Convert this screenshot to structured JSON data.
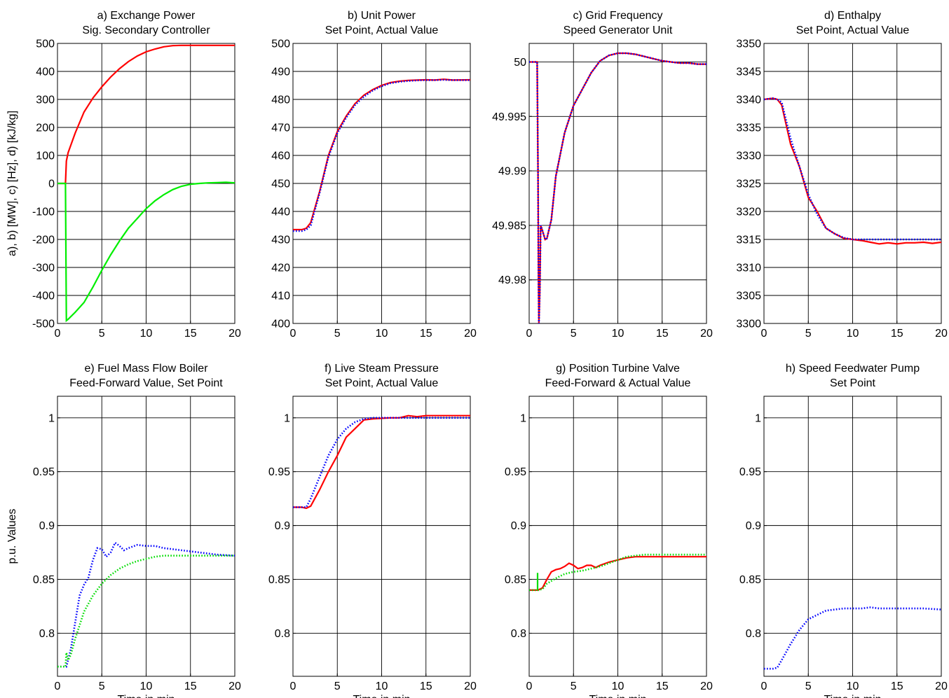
{
  "figure": {
    "ylabel_top": "a), b) [MW], c) [Hz], d) [kJ/kg]",
    "ylabel_bottom": "p.u. Values",
    "xlabel": "Time in min"
  },
  "chart_data": [
    {
      "type": "line",
      "title": [
        "a) Exchange Power",
        "Sig. Secondary Controller"
      ],
      "xlim": [
        0,
        20
      ],
      "xticks": [
        0,
        5,
        10,
        15,
        20
      ],
      "ylim": [
        -500,
        500
      ],
      "yticks": [
        -500,
        -400,
        -300,
        -200,
        -100,
        0,
        100,
        200,
        300,
        400,
        500
      ],
      "grid": true,
      "series": [
        {
          "color": "#ff0000",
          "style": "solid",
          "x": [
            0,
            0.9,
            1.0,
            1.2,
            2,
            3,
            4,
            5,
            6,
            7,
            8,
            9,
            10,
            11,
            12,
            13,
            14,
            15,
            17,
            20
          ],
          "y": [
            0,
            0,
            80,
            110,
            180,
            255,
            305,
            345,
            380,
            410,
            435,
            455,
            470,
            480,
            488,
            492,
            493,
            493,
            493,
            493
          ]
        },
        {
          "color": "#00ee00",
          "style": "solid",
          "x": [
            0,
            0.9,
            1.0,
            1.2,
            2,
            3,
            4,
            5,
            6,
            7,
            8,
            9,
            10,
            11,
            12,
            13,
            14,
            15,
            16,
            17,
            18,
            19,
            20
          ],
          "y": [
            0,
            0,
            -490,
            -485,
            -460,
            -425,
            -370,
            -310,
            -255,
            -205,
            -160,
            -125,
            -90,
            -62,
            -40,
            -22,
            -10,
            -3,
            0,
            2,
            3,
            4,
            2
          ]
        }
      ]
    },
    {
      "type": "line",
      "title": [
        "b) Unit Power",
        "Set Point, Actual Value"
      ],
      "xlim": [
        0,
        20
      ],
      "xticks": [
        0,
        5,
        10,
        15,
        20
      ],
      "ylim": [
        400,
        500
      ],
      "yticks": [
        400,
        410,
        420,
        430,
        440,
        450,
        460,
        470,
        480,
        490,
        500
      ],
      "grid": true,
      "series": [
        {
          "color": "#ff0000",
          "style": "solid",
          "x": [
            0,
            1,
            1.5,
            2,
            3,
            4,
            5,
            6,
            7,
            8,
            9,
            10,
            11,
            12,
            13,
            14,
            15,
            16,
            17,
            18,
            20
          ],
          "y": [
            433.5,
            433.5,
            434,
            436,
            447,
            460,
            468.5,
            474,
            478.5,
            481.5,
            483.5,
            485,
            486,
            486.5,
            486.8,
            486.9,
            487,
            486.9,
            487.2,
            486.9,
            487
          ]
        },
        {
          "color": "#0000ff",
          "style": "dotted",
          "x": [
            0,
            1,
            1.5,
            2,
            3,
            4,
            5,
            6,
            7,
            8,
            9,
            10,
            11,
            12,
            13,
            14,
            15,
            16,
            17,
            18,
            20
          ],
          "y": [
            433,
            433,
            433.5,
            435,
            446.5,
            459.5,
            468,
            473.5,
            478,
            481,
            483.2,
            484.7,
            485.8,
            486.3,
            486.6,
            486.8,
            486.9,
            486.9,
            487,
            486.9,
            486.9
          ]
        }
      ]
    },
    {
      "type": "line",
      "title": [
        "c) Grid Frequency",
        "Speed Generator Unit"
      ],
      "xlim": [
        0,
        20
      ],
      "xticks": [
        0,
        5,
        10,
        15,
        20
      ],
      "ylim": [
        49.976,
        50.0017
      ],
      "yticks": [
        49.98,
        49.985,
        49.99,
        49.995,
        50
      ],
      "grid": true,
      "series": [
        {
          "color": "#ff0000",
          "style": "solid",
          "x": [
            0,
            0.9,
            0.95,
            1.0,
            1.05,
            1.1,
            1.2,
            1.3,
            1.5,
            1.8,
            2,
            2.5,
            3,
            4,
            5,
            6,
            7,
            8,
            9,
            10,
            11,
            12,
            13,
            14,
            15,
            16,
            17,
            18,
            19,
            20
          ],
          "y": [
            50,
            50,
            49.995,
            49.99,
            49.98,
            49.976,
            49.979,
            49.985,
            49.9845,
            49.9837,
            49.9838,
            49.9855,
            49.9895,
            49.9935,
            49.996,
            49.9975,
            49.999,
            50.0001,
            50.0006,
            50.0008,
            50.0008,
            50.0007,
            50.0005,
            50.0003,
            50.0001,
            50,
            49.9999,
            49.9999,
            49.9998,
            49.9998
          ]
        },
        {
          "color": "#0000ff",
          "style": "dotted",
          "x": [
            0,
            0.9,
            0.95,
            1.0,
            1.05,
            1.1,
            1.2,
            1.3,
            1.5,
            1.8,
            2,
            2.5,
            3,
            4,
            5,
            6,
            7,
            8,
            9,
            10,
            11,
            12,
            13,
            14,
            15,
            16,
            17,
            18,
            19,
            20
          ],
          "y": [
            50,
            50,
            49.995,
            49.99,
            49.98,
            49.976,
            49.979,
            49.985,
            49.9845,
            49.9837,
            49.9838,
            49.9855,
            49.9895,
            49.9935,
            49.996,
            49.9975,
            49.999,
            50.0001,
            50.0006,
            50.0008,
            50.0008,
            50.0007,
            50.0005,
            50.0003,
            50.0001,
            50,
            49.9999,
            49.9999,
            49.9998,
            49.9998
          ]
        }
      ]
    },
    {
      "type": "line",
      "title": [
        "d) Enthalpy",
        "Set Point, Actual Value"
      ],
      "xlim": [
        0,
        20
      ],
      "xticks": [
        0,
        5,
        10,
        15,
        20
      ],
      "ylim": [
        3300,
        3350
      ],
      "yticks": [
        3300,
        3305,
        3310,
        3315,
        3320,
        3325,
        3330,
        3335,
        3340,
        3345,
        3350
      ],
      "grid": true,
      "series": [
        {
          "color": "#ff0000",
          "style": "solid",
          "x": [
            0,
            1,
            1.5,
            2,
            3,
            4,
            5,
            6,
            7,
            8,
            9,
            10,
            11,
            12,
            13,
            14,
            15,
            16,
            17,
            18,
            19,
            20
          ],
          "y": [
            3340,
            3340.2,
            3340,
            3339,
            3332,
            3328,
            3322.5,
            3320,
            3317,
            3316,
            3315.2,
            3315,
            3314.8,
            3314.5,
            3314.2,
            3314.4,
            3314.2,
            3314.4,
            3314.4,
            3314.5,
            3314.3,
            3314.5
          ]
        },
        {
          "color": "#0000ff",
          "style": "dotted",
          "x": [
            0,
            1,
            1.5,
            2,
            3,
            4,
            5,
            6,
            7,
            8,
            9,
            10,
            11,
            12,
            13,
            14,
            15,
            16,
            17,
            18,
            19,
            20
          ],
          "y": [
            3340,
            3340.2,
            3340,
            3339.5,
            3333,
            3328,
            3323,
            3319.5,
            3317,
            3316,
            3315.3,
            3315,
            3315,
            3315,
            3315,
            3315,
            3315,
            3315,
            3315,
            3315,
            3315,
            3315
          ]
        }
      ]
    },
    {
      "type": "line",
      "title": [
        "e) Fuel Mass Flow Boiler",
        "Feed-Forward Value, Set Point"
      ],
      "xlim": [
        0,
        20
      ],
      "xticks": [
        0,
        5,
        10,
        15,
        20
      ],
      "ylim": [
        0.76,
        1.02
      ],
      "yticks": [
        0.8,
        0.85,
        0.9,
        0.95,
        1
      ],
      "grid": true,
      "series": [
        {
          "color": "#0000ff",
          "style": "dotted",
          "x": [
            0,
            1,
            1.5,
            2,
            2.5,
            3,
            3.5,
            4,
            4.5,
            5,
            5.5,
            6,
            6.5,
            7,
            7.5,
            8,
            9,
            10,
            11,
            12,
            14,
            16,
            18,
            20
          ],
          "y": [
            0.769,
            0.769,
            0.785,
            0.81,
            0.835,
            0.845,
            0.852,
            0.868,
            0.879,
            0.878,
            0.871,
            0.875,
            0.884,
            0.881,
            0.877,
            0.879,
            0.882,
            0.881,
            0.881,
            0.879,
            0.877,
            0.875,
            0.873,
            0.872
          ]
        },
        {
          "color": "#00dd00",
          "style": "dotted",
          "x": [
            0,
            0.9,
            1.0,
            1.2,
            1.5,
            2,
            3,
            4,
            5,
            6,
            7,
            8,
            9,
            10,
            11,
            12,
            13,
            14,
            16,
            18,
            20
          ],
          "y": [
            0.769,
            0.769,
            0.782,
            0.775,
            0.78,
            0.795,
            0.82,
            0.835,
            0.846,
            0.854,
            0.86,
            0.864,
            0.867,
            0.869,
            0.871,
            0.872,
            0.872,
            0.872,
            0.872,
            0.872,
            0.872
          ]
        }
      ]
    },
    {
      "type": "line",
      "title": [
        "f) Live Steam Pressure",
        "Set Point, Actual Value"
      ],
      "xlim": [
        0,
        20
      ],
      "xticks": [
        0,
        5,
        10,
        15,
        20
      ],
      "ylim": [
        0.76,
        1.02
      ],
      "yticks": [
        0.8,
        0.85,
        0.9,
        0.95,
        1
      ],
      "grid": true,
      "series": [
        {
          "color": "#ff0000",
          "style": "solid",
          "x": [
            0,
            1,
            1.5,
            2,
            3,
            4,
            5,
            6,
            7,
            8,
            9,
            10,
            11,
            12,
            13,
            14,
            15,
            16,
            17,
            18,
            20
          ],
          "y": [
            0.917,
            0.917,
            0.916,
            0.918,
            0.933,
            0.95,
            0.965,
            0.982,
            0.99,
            0.998,
            0.999,
            0.9995,
            1.0,
            1.0,
            1.002,
            1.001,
            1.002,
            1.002,
            1.002,
            1.002,
            1.002
          ]
        },
        {
          "color": "#0000ff",
          "style": "dotted",
          "x": [
            0,
            1,
            1.5,
            2,
            3,
            4,
            5,
            6,
            7,
            8,
            9,
            10,
            11,
            12,
            14,
            16,
            18,
            20
          ],
          "y": [
            0.917,
            0.917,
            0.917,
            0.925,
            0.945,
            0.965,
            0.98,
            0.99,
            0.996,
            0.999,
            1.0,
            1.0,
            1.0,
            1.0,
            1.0,
            1.0,
            1.0,
            1.0
          ]
        }
      ]
    },
    {
      "type": "line",
      "title": [
        "g) Position Turbine Valve",
        "Feed-Forward & Actual Value"
      ],
      "xlim": [
        0,
        20
      ],
      "xticks": [
        0,
        5,
        10,
        15,
        20
      ],
      "ylim": [
        0.76,
        1.02
      ],
      "yticks": [
        0.8,
        0.85,
        0.9,
        0.95,
        1
      ],
      "grid": true,
      "series": [
        {
          "color": "#ff0000",
          "style": "solid",
          "x": [
            0,
            1,
            1.5,
            2,
            2.5,
            3,
            3.5,
            4,
            4.5,
            5,
            5.5,
            6,
            6.5,
            7,
            7.5,
            8,
            9,
            10,
            11,
            12,
            14,
            16,
            18,
            20
          ],
          "y": [
            0.84,
            0.84,
            0.842,
            0.85,
            0.857,
            0.859,
            0.86,
            0.862,
            0.865,
            0.863,
            0.86,
            0.861,
            0.863,
            0.863,
            0.861,
            0.863,
            0.866,
            0.868,
            0.87,
            0.871,
            0.871,
            0.871,
            0.871,
            0.871
          ]
        },
        {
          "color": "#00dd00",
          "style": "solid",
          "x": [
            0.95,
            0.95
          ],
          "y": [
            0.84,
            0.856
          ]
        },
        {
          "color": "#00dd00",
          "style": "dotted",
          "x": [
            0,
            1,
            1.5,
            2,
            3,
            4,
            5,
            6,
            7,
            8,
            9,
            10,
            11,
            12,
            13,
            14,
            16,
            18,
            20
          ],
          "y": [
            0.84,
            0.84,
            0.841,
            0.846,
            0.851,
            0.855,
            0.857,
            0.858,
            0.86,
            0.862,
            0.865,
            0.868,
            0.871,
            0.872,
            0.873,
            0.873,
            0.873,
            0.873,
            0.873
          ]
        }
      ]
    },
    {
      "type": "line",
      "title": [
        "h) Speed Feedwater Pump",
        "Set Point"
      ],
      "xlim": [
        0,
        20
      ],
      "xticks": [
        0,
        5,
        10,
        15,
        20
      ],
      "ylim": [
        0.76,
        1.02
      ],
      "yticks": [
        0.8,
        0.85,
        0.9,
        0.95,
        1
      ],
      "grid": true,
      "series": [
        {
          "color": "#0000ff",
          "style": "dotted",
          "x": [
            0,
            1,
            1.5,
            2,
            3,
            4,
            5,
            6,
            7,
            8,
            9,
            10,
            11,
            12,
            13,
            14,
            16,
            18,
            20
          ],
          "y": [
            0.767,
            0.767,
            0.768,
            0.775,
            0.79,
            0.803,
            0.813,
            0.817,
            0.821,
            0.822,
            0.823,
            0.823,
            0.823,
            0.824,
            0.823,
            0.823,
            0.823,
            0.823,
            0.822
          ]
        }
      ]
    }
  ]
}
